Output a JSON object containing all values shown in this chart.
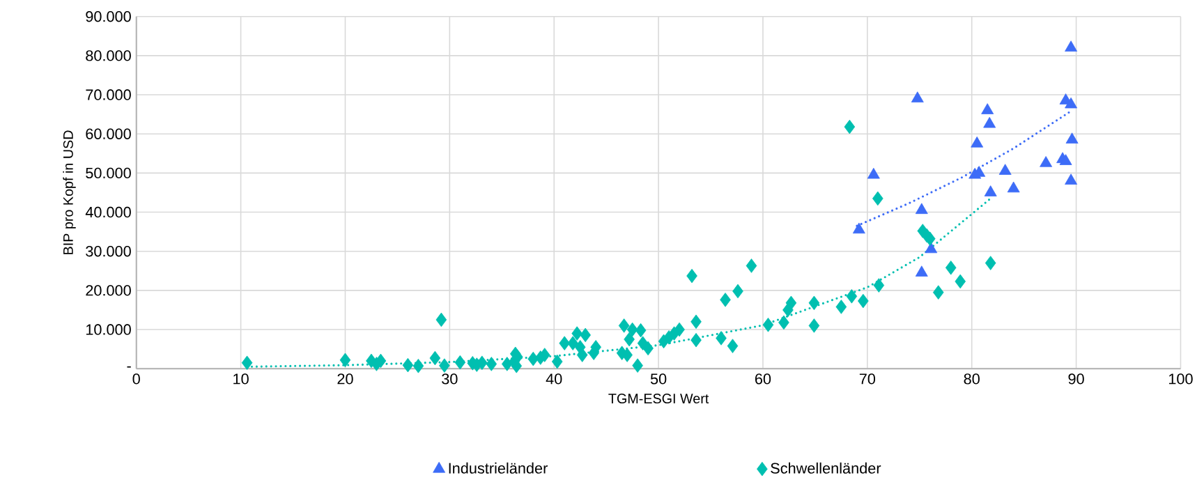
{
  "chart_data": {
    "type": "scatter",
    "xlabel": "TGM-ESGI Wert",
    "ylabel": "BIP pro Kopf in USD",
    "xlim": [
      0,
      100
    ],
    "xticks": [
      0,
      10,
      20,
      30,
      40,
      50,
      60,
      70,
      80,
      90,
      100
    ],
    "ylim": [
      0,
      90000
    ],
    "yticks": [
      {
        "value": 0,
        "label": "-"
      },
      {
        "value": 10000,
        "label": "10.000"
      },
      {
        "value": 20000,
        "label": "20.000"
      },
      {
        "value": 30000,
        "label": "30.000"
      },
      {
        "value": 40000,
        "label": "40.000"
      },
      {
        "value": 50000,
        "label": "50.000"
      },
      {
        "value": 60000,
        "label": "60.000"
      },
      {
        "value": 70000,
        "label": "70.000"
      },
      {
        "value": 80000,
        "label": "80.000"
      },
      {
        "value": 90000,
        "label": "90.000"
      }
    ],
    "grid": true,
    "legend": "bottom",
    "series": [
      {
        "name": "Industrieländer",
        "marker": "triangle",
        "color": "#3d6cf7",
        "x": [
          69.2,
          70.6,
          74.8,
          75.2,
          75.2,
          76.1,
          80.3,
          80.5,
          80.7,
          81.5,
          81.7,
          81.8,
          83.2,
          84,
          87.1,
          88.7,
          89,
          89,
          89.5,
          89.5,
          89.6,
          89.5
        ],
        "values": [
          35500,
          49500,
          69000,
          40500,
          24500,
          30500,
          49500,
          57500,
          50000,
          66000,
          62500,
          45000,
          50500,
          46000,
          52500,
          53500,
          53000,
          68500,
          67500,
          82000,
          58500,
          48000
        ]
      },
      {
        "name": "Schwellenländer",
        "marker": "diamond",
        "color": "#00bfb0",
        "x": [
          10.6,
          20,
          22.5,
          23,
          23.4,
          26,
          27,
          28.6,
          29.2,
          29.5,
          31,
          32.2,
          32.6,
          33.1,
          34,
          35.5,
          36.2,
          36.3,
          36.5,
          36.4,
          38,
          38.7,
          39.1,
          40.3,
          41,
          41.8,
          42.2,
          42.5,
          42.7,
          43,
          43.8,
          44,
          46.5,
          46.7,
          47,
          47.2,
          47.5,
          48,
          48.3,
          48.5,
          49,
          50.5,
          51,
          51.5,
          52,
          53.2,
          53.6,
          53.6,
          56,
          56.4,
          57.1,
          57.6,
          58.9,
          60.5,
          62,
          62.4,
          62.7,
          64.9,
          64.9,
          67.5,
          68.3,
          68.5,
          69.6,
          71,
          71.1,
          75.3,
          75.7,
          76,
          76.8,
          78,
          78.9,
          81.8
        ],
        "values": [
          1500,
          2200,
          2000,
          1200,
          2000,
          900,
          700,
          2700,
          12500,
          800,
          1600,
          1400,
          1000,
          1500,
          1200,
          1200,
          1900,
          3800,
          3000,
          700,
          2500,
          2800,
          3500,
          1800,
          6500,
          6500,
          9000,
          5500,
          3500,
          8600,
          4000,
          5500,
          4000,
          11000,
          3500,
          7500,
          10000,
          800,
          9800,
          6500,
          5200,
          7000,
          8000,
          9000,
          10000,
          23700,
          12000,
          7300,
          7800,
          17600,
          5800,
          19800,
          26300,
          11200,
          11800,
          15000,
          16800,
          16800,
          11000,
          15800,
          61800,
          18500,
          17300,
          43500,
          21300,
          35200,
          34000,
          33200,
          19500,
          25800,
          22300,
          27000
        ]
      },
      {
        "type": "line",
        "marker": "none",
        "line_style": "dotted",
        "color": "#3d6cf7",
        "x": [
          69,
          74,
          79,
          84,
          89.6
        ],
        "values": [
          36500,
          42300,
          48800,
          56300,
          66000
        ]
      },
      {
        "type": "line",
        "marker": "none",
        "line_style": "dotted",
        "color": "#00bfb0",
        "x": [
          10.6,
          20,
          30,
          40,
          50,
          60,
          70,
          75,
          81.8
        ],
        "values": [
          500,
          900,
          1700,
          3200,
          6000,
          11100,
          20800,
          28500,
          43500
        ]
      }
    ]
  }
}
